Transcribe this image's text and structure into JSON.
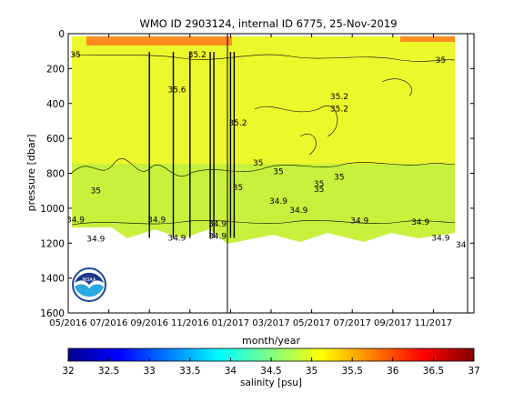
{
  "chart_data": {
    "type": "heatmap",
    "title": "WMO ID 2903124, internal ID 6775, 25-Nov-2019",
    "xlabel": "month/year",
    "ylabel": "pressure [dbar]",
    "colorbar_label": "salinity [psu]",
    "x_ticks": [
      "05/2016",
      "07/2016",
      "09/2016",
      "11/2016",
      "01/2017",
      "03/2017",
      "05/2017",
      "07/2017",
      "09/2017",
      "11/2017"
    ],
    "y_ticks": [
      0,
      200,
      400,
      600,
      800,
      1000,
      1200,
      1400,
      1600
    ],
    "ylim": [
      1600,
      0
    ],
    "colorbar_range": [
      32,
      37
    ],
    "colorbar_ticks": [
      "32",
      "32.5",
      "33",
      "33.5",
      "34",
      "34.5",
      "35",
      "35.5",
      "36",
      "36.5",
      "37"
    ],
    "colormap": [
      "#00008f",
      "#0000ff",
      "#0080ff",
      "#00ffff",
      "#80ff80",
      "#ffff00",
      "#ff8000",
      "#ff0000",
      "#800000"
    ],
    "field_colors": {
      "deep_layer": "#c8f03c",
      "main_layer": "#ecf82c",
      "surface_layer": "#ff8c1e"
    },
    "contour_labels": [
      {
        "text": "35",
        "x": "05/2016",
        "p": 120
      },
      {
        "text": "35.2",
        "x": "11/2016",
        "p": 120
      },
      {
        "text": "35.6",
        "x": "10/2016",
        "p": 320
      },
      {
        "text": "35.2",
        "x": "01/2017",
        "p": 510
      },
      {
        "text": "35.2",
        "x": "06/2017",
        "p": 360
      },
      {
        "text": "35.2",
        "x": "06/2017",
        "p": 430
      },
      {
        "text": "35",
        "x": "11/2017",
        "p": 150
      },
      {
        "text": "35",
        "x": "02/2017",
        "p": 740
      },
      {
        "text": "35",
        "x": "03/2017",
        "p": 790
      },
      {
        "text": "35",
        "x": "05/2017",
        "p": 860
      },
      {
        "text": "35",
        "x": "05/2017",
        "p": 890
      },
      {
        "text": "35",
        "x": "06/2017",
        "p": 820
      },
      {
        "text": "35",
        "x": "06/2016",
        "p": 900
      },
      {
        "text": "35",
        "x": "01/2017",
        "p": 880
      },
      {
        "text": "34.9",
        "x": "03/2017",
        "p": 960
      },
      {
        "text": "34.9",
        "x": "04/2017",
        "p": 1010
      },
      {
        "text": "34.9",
        "x": "05/2016",
        "p": 1065
      },
      {
        "text": "34.9",
        "x": "09/2016",
        "p": 1065
      },
      {
        "text": "34.9",
        "x": "12/2016",
        "p": 1090
      },
      {
        "text": "34.9",
        "x": "07/2017",
        "p": 1070
      },
      {
        "text": "34.9",
        "x": "10/2017",
        "p": 1080
      },
      {
        "text": "34.9",
        "x": "06/2016",
        "p": 1175
      },
      {
        "text": "34.9",
        "x": "10/2016",
        "p": 1170
      },
      {
        "text": "34.9",
        "x": "12/2016",
        "p": 1160
      },
      {
        "text": "34.9",
        "x": "11/2017",
        "p": 1170
      },
      {
        "text": "34",
        "x": "12/2017",
        "p": 1210
      }
    ],
    "vertical_marks": [
      "09/2016",
      "10/2016",
      "11/2016",
      "12/2016",
      "12/2016",
      "01/2017",
      "01/2017"
    ],
    "grid": false,
    "colorbar_position": "bottom"
  },
  "logo": {
    "text": "NOAA",
    "icon": "noaa-logo-icon"
  }
}
